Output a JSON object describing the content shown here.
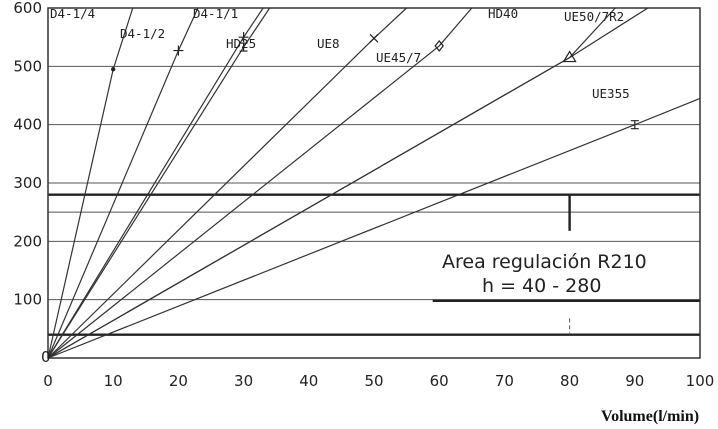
{
  "chart_data": {
    "type": "line",
    "title": "",
    "xlabel": "Volume(l/min)",
    "ylabel": "",
    "xlim": [
      0,
      100
    ],
    "ylim": [
      0,
      600
    ],
    "x_ticks": [
      "0",
      "10",
      "20",
      "30",
      "40",
      "50",
      "60",
      "70",
      "80",
      "90",
      "100"
    ],
    "y_ticks": [
      "0",
      "100",
      "200",
      "300",
      "400",
      "500",
      "600"
    ],
    "grid": true,
    "series": [
      {
        "name": "D4-1/4",
        "x": [
          0,
          10,
          13
        ],
        "y": [
          0,
          495,
          600
        ],
        "marker": "dot",
        "marker_at": [
          10,
          495
        ]
      },
      {
        "name": "D4-1/2",
        "x": [
          0,
          20,
          23
        ],
        "y": [
          0,
          527,
          600
        ],
        "marker": "plus",
        "marker_at": [
          20,
          527
        ]
      },
      {
        "name": "D4-1/1",
        "x": [
          0,
          30,
          33
        ],
        "y": [
          0,
          550,
          600
        ],
        "marker": "plus",
        "marker_at": [
          30,
          550
        ]
      },
      {
        "name": "HD25",
        "x": [
          0,
          30,
          34
        ],
        "y": [
          0,
          533,
          600
        ],
        "marker": "bar",
        "marker_at": [
          30,
          533
        ]
      },
      {
        "name": "UE8",
        "x": [
          0,
          50,
          55
        ],
        "y": [
          0,
          548,
          600
        ],
        "marker": "x",
        "marker_at": [
          50,
          548
        ]
      },
      {
        "name": "UE45/7",
        "x": [
          0,
          60,
          65
        ],
        "y": [
          0,
          535,
          600
        ],
        "marker": "diamond",
        "marker_at": [
          60,
          535
        ]
      },
      {
        "name": "HD40",
        "x": [
          0,
          80,
          87
        ],
        "y": [
          0,
          515,
          600
        ],
        "marker": "none"
      },
      {
        "name": "UE50/7R2",
        "x": [
          0,
          80,
          92
        ],
        "y": [
          0,
          515,
          600
        ],
        "marker": "triangle",
        "marker_at": [
          80,
          515
        ]
      },
      {
        "name": "UE355",
        "x": [
          0,
          90,
          100
        ],
        "y": [
          0,
          400,
          445
        ],
        "marker": "bar",
        "marker_at": [
          90,
          400
        ]
      }
    ],
    "annotations": {
      "area_title": "Area regulación R210",
      "area_range": "h = 40 - 280",
      "band_low": 40,
      "band_high": 280,
      "origin_mark": "0"
    }
  }
}
